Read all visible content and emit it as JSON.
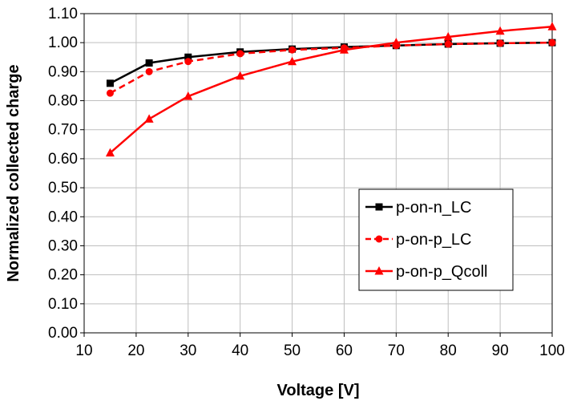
{
  "chart_data": {
    "type": "line",
    "title": "",
    "xlabel": "Voltage [V]",
    "ylabel": "Normalized collected charge",
    "xlim": [
      10,
      100
    ],
    "ylim": [
      0.0,
      1.1
    ],
    "xticks": [
      10,
      20,
      30,
      40,
      50,
      60,
      70,
      80,
      90,
      100
    ],
    "yticks": [
      0.0,
      0.1,
      0.2,
      0.3,
      0.4,
      0.5,
      0.6,
      0.7,
      0.8,
      0.9,
      1.0,
      1.1
    ],
    "ytick_labels": [
      "0.00",
      "0.10",
      "0.20",
      "0.30",
      "0.40",
      "0.50",
      "0.60",
      "0.70",
      "0.80",
      "0.90",
      "1.00",
      "1.10"
    ],
    "xtick_labels": [
      "10",
      "20",
      "30",
      "40",
      "50",
      "60",
      "70",
      "80",
      "90",
      "100"
    ],
    "grid": true,
    "legend_position": "center-right",
    "series": [
      {
        "name": "p-on-n_LC",
        "color": "#000000",
        "marker": "square",
        "dash": "solid",
        "x": [
          15,
          22.5,
          30,
          40,
          50,
          60,
          70,
          80,
          90,
          100
        ],
        "y": [
          0.86,
          0.93,
          0.95,
          0.968,
          0.978,
          0.985,
          0.99,
          0.995,
          0.998,
          1.0
        ]
      },
      {
        "name": "p-on-p_LC",
        "color": "#ff0000",
        "marker": "circle",
        "dash": "dashed",
        "x": [
          15,
          22.5,
          30,
          40,
          50,
          60,
          70,
          80,
          90,
          100
        ],
        "y": [
          0.826,
          0.9,
          0.935,
          0.962,
          0.975,
          0.982,
          0.99,
          0.995,
          0.998,
          1.0
        ]
      },
      {
        "name": "p-on-p_Qcoll",
        "color": "#ff0000",
        "marker": "triangle",
        "dash": "solid",
        "x": [
          15,
          22.5,
          30,
          40,
          50,
          60,
          70,
          80,
          90,
          100
        ],
        "y": [
          0.62,
          0.737,
          0.815,
          0.885,
          0.935,
          0.975,
          1.0,
          1.02,
          1.04,
          1.055
        ]
      }
    ]
  }
}
